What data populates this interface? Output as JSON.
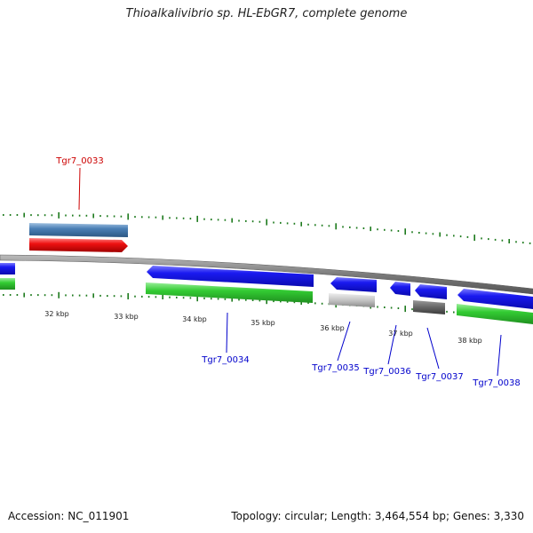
{
  "title": "Thioalkalivibrio sp. HL-EbGR7, complete genome",
  "footer": {
    "accession": "Accession: NC_011901",
    "summary": "Topology: circular; Length: 3,464,554 bp; Genes: 3,330"
  },
  "colors": {
    "backbone": "#888888",
    "tick": "#1d7a1d",
    "tick_label": "#222222",
    "upper_label": "#cc0000",
    "lower_label": "#0000cc",
    "blue": "#1a1af0",
    "green": "#33cc33",
    "red": "#ee1111",
    "steel": "#4a7fb5",
    "light_gray": "#c4c4c4",
    "dark_gray": "#666666"
  },
  "tick_labels": [
    "32 kbp",
    "33 kbp",
    "34 kbp",
    "35 kbp",
    "36 kbp",
    "37 kbp",
    "38 kbp"
  ],
  "gene_labels": [
    "Tgr7_0033",
    "Tgr7_0034",
    "Tgr7_0035",
    "Tgr7_0036",
    "Tgr7_0037",
    "Tgr7_0038"
  ]
}
